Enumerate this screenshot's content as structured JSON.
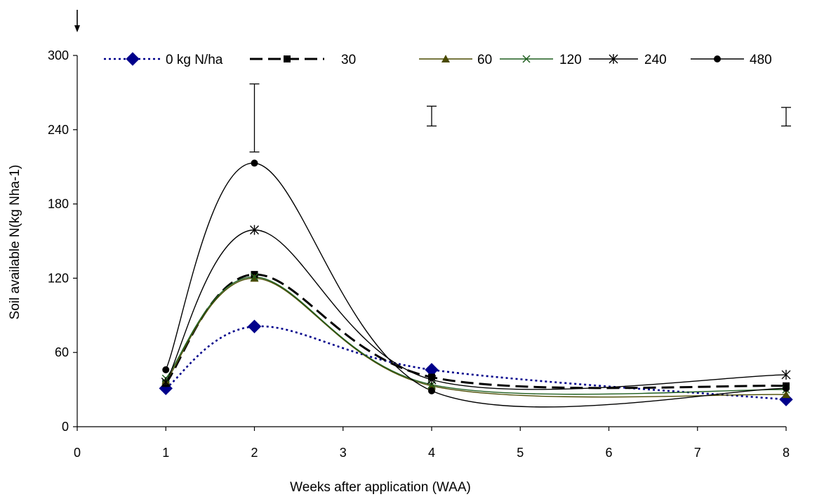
{
  "chart_data": {
    "type": "line",
    "title": "",
    "xlabel": "Weeks after application (WAA)",
    "ylabel": "Soil available N(kg Nha-1)",
    "xlim": [
      0,
      8
    ],
    "ylim": [
      0,
      300
    ],
    "xticks": [
      "0",
      "1",
      "2",
      "3",
      "4",
      "5",
      "6",
      "7",
      "8"
    ],
    "yticks": [
      "0",
      "60",
      "120",
      "180",
      "240",
      "300"
    ],
    "grid": false,
    "legend": "top",
    "x": [
      1,
      2,
      4,
      8
    ],
    "application_marker": {
      "x": 0
    },
    "error_bars": [
      {
        "x": 2,
        "low": 222,
        "high": 277
      },
      {
        "x": 4,
        "low": 243,
        "high": 259
      },
      {
        "x": 8,
        "low": 243,
        "high": 258
      }
    ],
    "series": [
      {
        "name": "0 kg N/ha",
        "values": [
          31,
          81,
          46,
          22
        ],
        "color": "#00008B",
        "marker": "diamond",
        "dash": "dotted"
      },
      {
        "name": "30",
        "values": [
          35,
          123,
          40,
          33
        ],
        "color": "#000000",
        "marker": "square",
        "dash": "dashed"
      },
      {
        "name": "60",
        "values": [
          37,
          120,
          33,
          26
        ],
        "color": "#4a4a00",
        "marker": "triangle",
        "dash": "solid"
      },
      {
        "name": "120",
        "values": [
          39,
          121,
          34,
          30
        ],
        "color": "#1f5f1f",
        "marker": "x",
        "dash": "solid"
      },
      {
        "name": "240",
        "values": [
          36,
          159,
          38,
          42
        ],
        "color": "#000000",
        "marker": "star",
        "dash": "solid"
      },
      {
        "name": "480",
        "values": [
          46,
          213,
          29,
          31
        ],
        "color": "#000000",
        "marker": "circle",
        "dash": "solid"
      }
    ]
  }
}
